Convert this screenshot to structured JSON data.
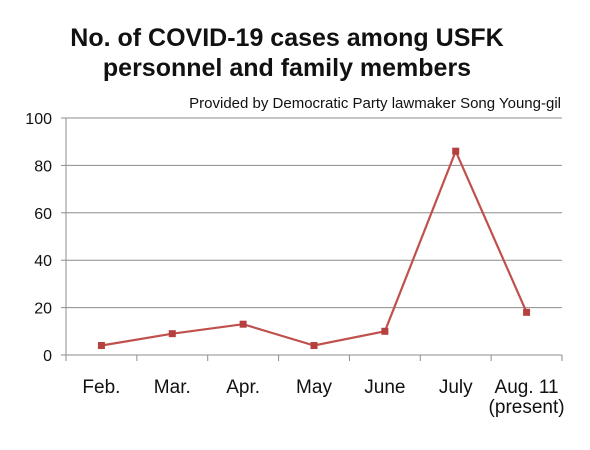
{
  "chart_data": {
    "type": "line",
    "title_lines": [
      "No. of COVID-19 cases among USFK",
      "personnel and family members"
    ],
    "subtitle": "Provided by Democratic Party lawmaker Song Young-gil",
    "categories": [
      [
        "Feb."
      ],
      [
        "Mar."
      ],
      [
        "Apr."
      ],
      [
        "May"
      ],
      [
        "June"
      ],
      [
        "July"
      ],
      [
        "Aug. 11",
        "(present)"
      ]
    ],
    "series": [
      {
        "values": [
          4,
          9,
          13,
          4,
          10,
          86,
          18
        ]
      }
    ],
    "ylim": [
      0,
      100
    ],
    "yticks": [
      0,
      20,
      40,
      60,
      80,
      100
    ],
    "grid": true,
    "legend": "none",
    "line_color": "#c0504d",
    "marker_color": "#b5403d",
    "grid_color": "#8c8c8c"
  }
}
